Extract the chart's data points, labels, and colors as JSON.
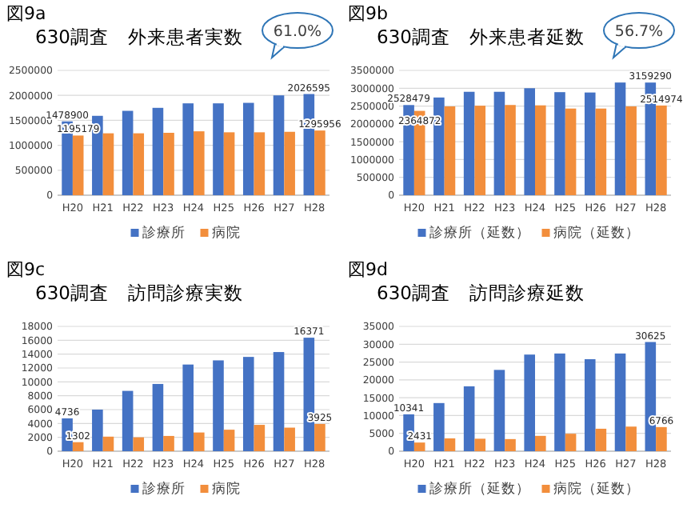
{
  "chart_data": [
    {
      "type": "bar",
      "title": "図9a",
      "subtitle": "630調査　外来患者実数",
      "categories": [
        "H20",
        "H21",
        "H22",
        "H23",
        "H24",
        "H25",
        "H26",
        "H27",
        "H28"
      ],
      "series": [
        {
          "name": "診療所",
          "color": "#4472c4",
          "values": [
            1478900,
            1590000,
            1690000,
            1750000,
            1840000,
            1840000,
            1850000,
            2000000,
            2026595
          ],
          "value_labels": [
            "1478900",
            null,
            null,
            null,
            null,
            null,
            null,
            null,
            "2026595"
          ]
        },
        {
          "name": "病院",
          "color": "#f28e3c",
          "values": [
            1195179,
            1240000,
            1240000,
            1250000,
            1280000,
            1260000,
            1260000,
            1270000,
            1295956
          ],
          "value_labels": [
            "1195179",
            null,
            null,
            null,
            null,
            null,
            null,
            null,
            "1295956"
          ]
        }
      ],
      "ylim": [
        0,
        2500000
      ],
      "yticks": [
        0,
        500000,
        1000000,
        1500000,
        2000000,
        2500000
      ],
      "grid": "y",
      "legend": "bottom",
      "annotations": [
        "61.0%"
      ]
    },
    {
      "type": "bar",
      "title": "図9b",
      "subtitle": "630調査　外来患者延数",
      "categories": [
        "H20",
        "H21",
        "H22",
        "H23",
        "H24",
        "H25",
        "H26",
        "H27",
        "H28"
      ],
      "series": [
        {
          "name": "診療所（延数）",
          "color": "#4472c4",
          "values": [
            2528479,
            2740000,
            2900000,
            2900000,
            3000000,
            2890000,
            2880000,
            3160000,
            3159290
          ],
          "value_labels": [
            "2528479",
            null,
            null,
            null,
            null,
            null,
            null,
            null,
            "3159290"
          ]
        },
        {
          "name": "病院（延数）",
          "color": "#f28e3c",
          "values": [
            2364872,
            2490000,
            2510000,
            2530000,
            2520000,
            2430000,
            2430000,
            2490000,
            2514974
          ],
          "value_labels": [
            "2364872",
            null,
            null,
            null,
            null,
            null,
            null,
            null,
            "2514974"
          ]
        }
      ],
      "ylim": [
        0,
        3500000
      ],
      "yticks": [
        0,
        500000,
        1000000,
        1500000,
        2000000,
        2500000,
        3000000,
        3500000
      ],
      "grid": "y",
      "legend": "bottom",
      "annotations": [
        "56.7%"
      ]
    },
    {
      "type": "bar",
      "title": "図9c",
      "subtitle": "630調査　訪問診療実数",
      "categories": [
        "H20",
        "H21",
        "H22",
        "H23",
        "H24",
        "H25",
        "H26",
        "H27",
        "H28"
      ],
      "series": [
        {
          "name": "診療所",
          "color": "#4472c4",
          "values": [
            4736,
            6000,
            8700,
            9700,
            12500,
            13100,
            13600,
            14300,
            16371
          ],
          "value_labels": [
            "4736",
            null,
            null,
            null,
            null,
            null,
            null,
            null,
            "16371"
          ]
        },
        {
          "name": "病院",
          "color": "#f28e3c",
          "values": [
            1302,
            2100,
            2000,
            2200,
            2700,
            3100,
            3800,
            3400,
            3925
          ],
          "value_labels": [
            "1302",
            null,
            null,
            null,
            null,
            null,
            null,
            null,
            "3925"
          ]
        }
      ],
      "ylim": [
        0,
        18000
      ],
      "yticks": [
        0,
        2000,
        4000,
        6000,
        8000,
        10000,
        12000,
        14000,
        16000,
        18000
      ],
      "grid": "y",
      "legend": "bottom"
    },
    {
      "type": "bar",
      "title": "図9d",
      "subtitle": "630調査　訪問診療延数",
      "categories": [
        "H20",
        "H21",
        "H22",
        "H23",
        "H24",
        "H25",
        "H26",
        "H27",
        "H28"
      ],
      "series": [
        {
          "name": "診療所（延数）",
          "color": "#4472c4",
          "values": [
            10341,
            13500,
            18200,
            22800,
            27100,
            27400,
            25800,
            27400,
            30625
          ],
          "value_labels": [
            "10341",
            null,
            null,
            null,
            null,
            null,
            null,
            null,
            "30625"
          ]
        },
        {
          "name": "病院（延数）",
          "color": "#f28e3c",
          "values": [
            2431,
            3600,
            3500,
            3400,
            4300,
            4900,
            6300,
            6900,
            6766
          ],
          "value_labels": [
            "2431",
            null,
            null,
            null,
            null,
            null,
            null,
            null,
            "6766"
          ]
        }
      ],
      "ylim": [
        0,
        35000
      ],
      "yticks": [
        0,
        5000,
        10000,
        15000,
        20000,
        25000,
        30000,
        35000
      ],
      "grid": "y",
      "legend": "bottom"
    }
  ]
}
